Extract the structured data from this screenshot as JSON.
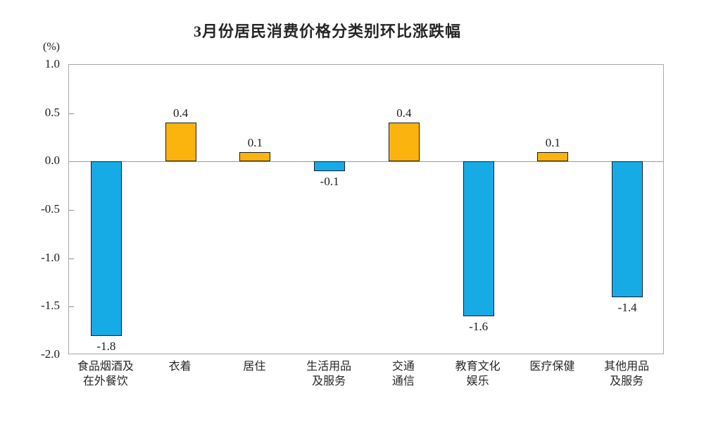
{
  "title": "3月份居民消费价格分类别环比涨跌幅",
  "colors": {
    "positive_bar": "#FBB40D",
    "negative_bar": "#17ABE5",
    "bar_border": "#1b1b26",
    "axis_line": "#a8a8a8",
    "zero_line": "#9a9a9a",
    "text": "#1c1c1c"
  },
  "chart_data": {
    "type": "bar",
    "title": "3月份居民消费价格分类别环比涨跌幅",
    "ylabel": "(%)",
    "xlabel": "",
    "categories": [
      "食品烟酒及\n在外餐饮",
      "衣着",
      "居住",
      "生活用品\n及服务",
      "交通\n通信",
      "教育文化\n娱乐",
      "医疗保健",
      "其他用品\n及服务"
    ],
    "values": [
      -1.8,
      0.4,
      0.1,
      -0.1,
      0.4,
      -1.6,
      0.1,
      -1.4
    ],
    "data_labels": [
      "-1.8",
      "0.4",
      "0.1",
      "-0.1",
      "0.4",
      "-1.6",
      "0.1",
      "-1.4"
    ],
    "ylim": [
      -2.0,
      1.0
    ],
    "yticks": [
      1.0,
      0.5,
      0.0,
      -0.5,
      -1.0,
      -1.5,
      -2.0
    ],
    "ytick_labels": [
      "1.0",
      "0.5",
      "0.0",
      "-0.5",
      "-1.0",
      "-1.5",
      "-2.0"
    ],
    "grid": false,
    "legend": "none",
    "bar_color_rule": "positive bars orange, negative bars blue"
  }
}
